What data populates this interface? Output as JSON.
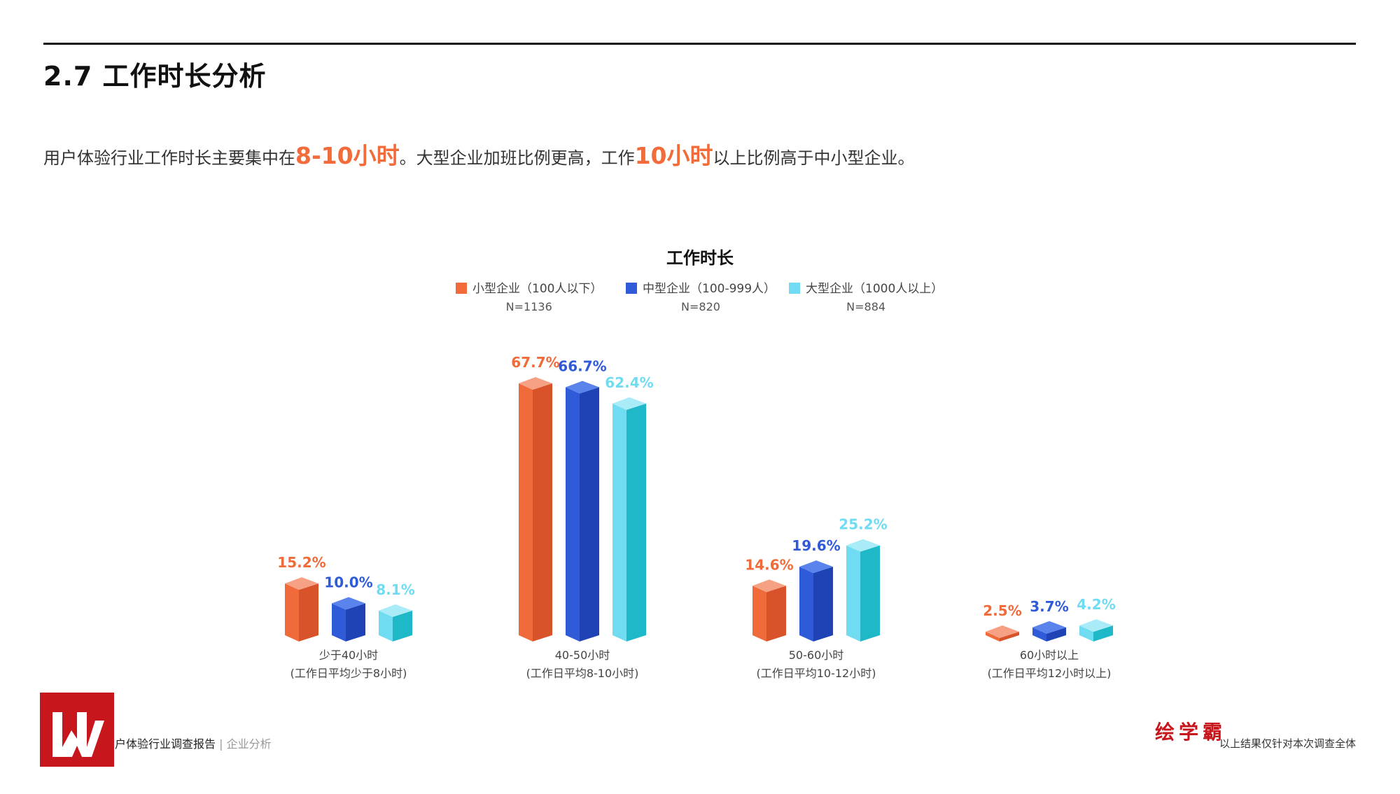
{
  "section": {
    "title": "2.7 工作时长分析"
  },
  "summary": {
    "part1": "用户体验行业工作时长主要集中在",
    "hl1": "8-10小时",
    "part2": "。大型企业加班比例更高，工作",
    "hl2": "10小时",
    "part3": "以上比例高于中小型企业。"
  },
  "colors": {
    "accent": "#f26b3a",
    "small": "#f26b3a",
    "medium": "#2f5bd9",
    "large": "#6fdcf2",
    "brand_red": "#c8161d"
  },
  "chart_data": {
    "type": "bar",
    "title": "工作时长",
    "categories": [
      {
        "line1": "少于40小时",
        "line2": "(工作日平均少于8小时)"
      },
      {
        "line1": "40-50小时",
        "line2": "(工作日平均8-10小时)"
      },
      {
        "line1": "50-60小时",
        "line2": "(工作日平均10-12小时)"
      },
      {
        "line1": "60小时以上",
        "line2": "(工作日平均12小时以上)"
      }
    ],
    "series": [
      {
        "name": "小型企业（100人以下）",
        "n": "N=1136",
        "values": [
          15.2,
          67.7,
          14.6,
          2.5
        ],
        "labels": [
          "15.2%",
          "67.7%",
          "14.6%",
          "2.5%"
        ]
      },
      {
        "name": "中型企业（100-999人）",
        "n": "N=820",
        "values": [
          10.0,
          66.7,
          19.6,
          3.7
        ],
        "labels": [
          "10.0%",
          "66.7%",
          "19.6%",
          "3.7%"
        ]
      },
      {
        "name": "大型企业（1000人以上）",
        "n": "N=884",
        "values": [
          8.1,
          62.4,
          25.2,
          4.2
        ],
        "labels": [
          "8.1%",
          "62.4%",
          "25.2%",
          "4.2%"
        ]
      }
    ],
    "unit": "%",
    "legend_position": "top-center",
    "grid": false
  },
  "footer": {
    "report": "户体验行业调查报告",
    "divider": " | ",
    "section": "企业分析",
    "brand": "绘学霸",
    "note": "以上结果仅针对本次调查全体"
  }
}
